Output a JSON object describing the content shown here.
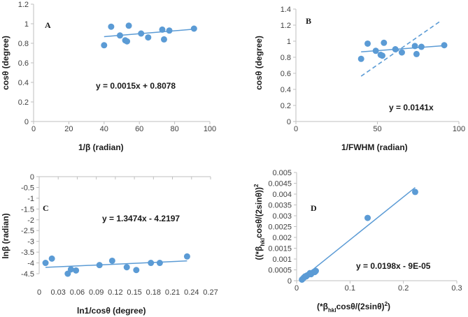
{
  "chart_data": [
    {
      "type": "scatter",
      "panel": "A",
      "xlabel": "1/β  (radian)",
      "ylabel": "cosθ (degree)",
      "xlim": [
        0,
        100
      ],
      "ylim": [
        0,
        1.2
      ],
      "xticks": [
        "0",
        "20",
        "40",
        "60",
        "80",
        "100"
      ],
      "yticks": [
        "0",
        "0.2",
        "0.4",
        "0.6",
        "0.8",
        "1",
        "1.2"
      ],
      "equation": "y = 0.0015x + 0.8078",
      "points": [
        [
          40,
          0.78
        ],
        [
          44,
          0.97
        ],
        [
          49,
          0.88
        ],
        [
          52,
          0.83
        ],
        [
          53,
          0.82
        ],
        [
          54,
          0.98
        ],
        [
          61,
          0.9
        ],
        [
          65,
          0.86
        ],
        [
          73,
          0.94
        ],
        [
          74,
          0.84
        ],
        [
          77,
          0.93
        ],
        [
          91,
          0.95
        ]
      ],
      "trendline": [
        [
          40,
          0.8678
        ],
        [
          91,
          0.9443
        ]
      ]
    },
    {
      "type": "scatter",
      "panel": "B",
      "xlabel": "1/FWHM (radian)",
      "ylabel": "cosθ (degree)",
      "xlim": [
        0,
        100
      ],
      "ylim": [
        0,
        1.4
      ],
      "xticks": [
        "0",
        "50",
        "100"
      ],
      "yticks": [
        "0",
        "0.2",
        "0.4",
        "0.6",
        "0.8",
        "1",
        "1.2",
        "1.4"
      ],
      "equation": "y = 0.0141x",
      "points": [
        [
          40,
          0.78
        ],
        [
          44,
          0.97
        ],
        [
          49,
          0.88
        ],
        [
          52,
          0.83
        ],
        [
          53,
          0.82
        ],
        [
          54,
          0.98
        ],
        [
          61,
          0.9
        ],
        [
          65,
          0.86
        ],
        [
          73,
          0.94
        ],
        [
          74,
          0.84
        ],
        [
          77,
          0.93
        ],
        [
          91,
          0.95
        ]
      ],
      "trendline": [
        [
          40,
          0.8678
        ],
        [
          91,
          0.9443
        ]
      ],
      "dashed_line": [
        [
          40,
          0.564
        ],
        [
          89,
          1.2549
        ]
      ]
    },
    {
      "type": "scatter",
      "panel": "C",
      "xlabel": "ln1/cosθ (degree)",
      "ylabel": "lnβ (radian)",
      "xlim": [
        0,
        0.27
      ],
      "ylim": [
        -4.5,
        0
      ],
      "xticks": [
        "0",
        "0.03",
        "0.06",
        "0.09",
        "0.12",
        "0.15",
        "0.18",
        "0.21",
        "0.24",
        "0.27"
      ],
      "yticks": [
        "0",
        "-0.5",
        "-1",
        "-1.5",
        "-2",
        "-2.5",
        "-3",
        "-3.5",
        "-4",
        "-4.5"
      ],
      "equation": "y = 1.3474x - 4.2197",
      "points": [
        [
          0.01,
          -4.0
        ],
        [
          0.02,
          -3.8
        ],
        [
          0.045,
          -4.5
        ],
        [
          0.05,
          -4.3
        ],
        [
          0.058,
          -4.35
        ],
        [
          0.095,
          -4.1
        ],
        [
          0.115,
          -3.9
        ],
        [
          0.138,
          -4.2
        ],
        [
          0.153,
          -4.33
        ],
        [
          0.176,
          -4.0
        ],
        [
          0.19,
          -4.0
        ],
        [
          0.233,
          -3.7
        ]
      ],
      "trendline": [
        [
          0.01,
          -4.2062
        ],
        [
          0.233,
          -3.9058
        ]
      ]
    },
    {
      "type": "scatter",
      "panel": "D",
      "xlabel_main": "(*β",
      "xlabel_sub": "hkl",
      "xlabel_rest": "cosθ/(2sinθ)",
      "xlabel_sup": "2",
      "xlabel_end": ")",
      "ylabel_main": "((*β",
      "ylabel_sub": "hkl",
      "ylabel_rest": "cosθ/(2sinθ))",
      "ylabel_sup": "2",
      "xlim": [
        0,
        0.3
      ],
      "ylim": [
        0,
        0.005
      ],
      "xticks": [
        "0",
        "0.1",
        "0.2",
        "0.3"
      ],
      "yticks": [
        "0",
        "0.0005",
        "0.001",
        "0.0015",
        "0.002",
        "0.0025",
        "0.003",
        "0.0035",
        "0.004",
        "0.0045",
        "0.005"
      ],
      "equation": "y = 0.0198x - 9E-05",
      "points": [
        [
          0.01,
          5e-05
        ],
        [
          0.012,
          0.0001
        ],
        [
          0.014,
          0.00015
        ],
        [
          0.016,
          0.0002
        ],
        [
          0.018,
          0.0002
        ],
        [
          0.02,
          0.00025
        ],
        [
          0.025,
          0.00035
        ],
        [
          0.027,
          0.0003
        ],
        [
          0.032,
          0.0004
        ],
        [
          0.034,
          0.0004
        ],
        [
          0.036,
          0.00045
        ],
        [
          0.133,
          0.0029
        ],
        [
          0.222,
          0.0041
        ]
      ],
      "trendline": [
        [
          0.01,
          0.000108
        ],
        [
          0.222,
          0.0043056
        ]
      ]
    }
  ],
  "colors": {
    "marker": "#5b9bd5",
    "line": "#5b9bd5",
    "axis": "#bfbfbf"
  }
}
